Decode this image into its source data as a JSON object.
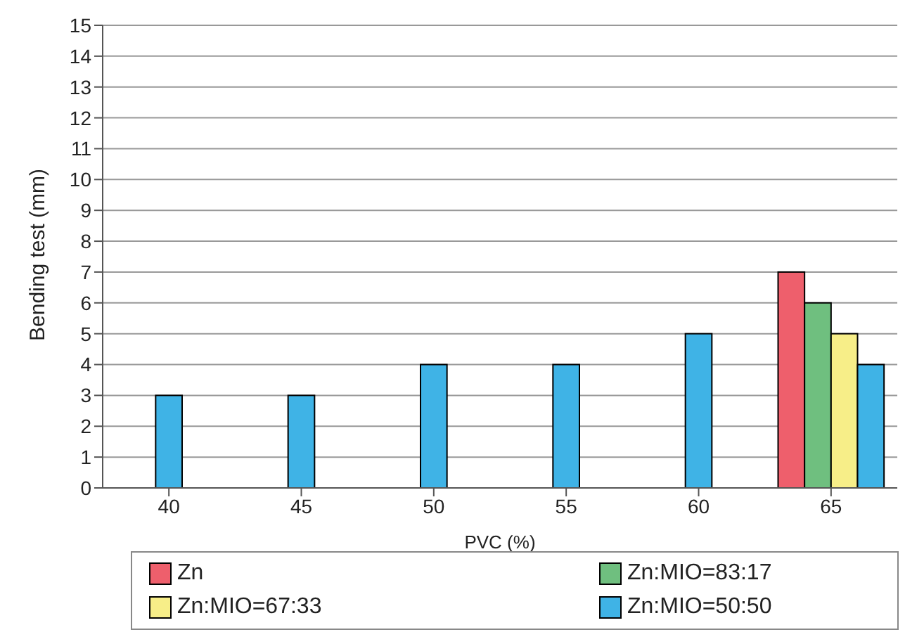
{
  "chart_data": {
    "type": "bar",
    "xlabel": "PVC (%)",
    "ylabel": "Bending test (mm)",
    "categories": [
      "40",
      "45",
      "50",
      "55",
      "60",
      "65"
    ],
    "series": [
      {
        "name": "Zn",
        "color": "#ee5f6c",
        "values": [
          null,
          null,
          null,
          null,
          null,
          7
        ]
      },
      {
        "name": "Zn:MIO=83:17",
        "color": "#6fbf7f",
        "values": [
          null,
          null,
          null,
          null,
          null,
          6
        ]
      },
      {
        "name": "Zn:MIO=67:33",
        "color": "#f7ee88",
        "values": [
          null,
          null,
          null,
          null,
          null,
          5
        ]
      },
      {
        "name": "Zn:MIO=50:50",
        "color": "#3fb3e6",
        "values": [
          3,
          3,
          4,
          4,
          5,
          4
        ]
      }
    ],
    "ylim": [
      0,
      15
    ],
    "yticks": [
      0,
      1,
      2,
      3,
      4,
      5,
      6,
      7,
      8,
      9,
      10,
      11,
      12,
      13,
      14,
      15
    ],
    "grid": "y",
    "legend": "bottom"
  }
}
